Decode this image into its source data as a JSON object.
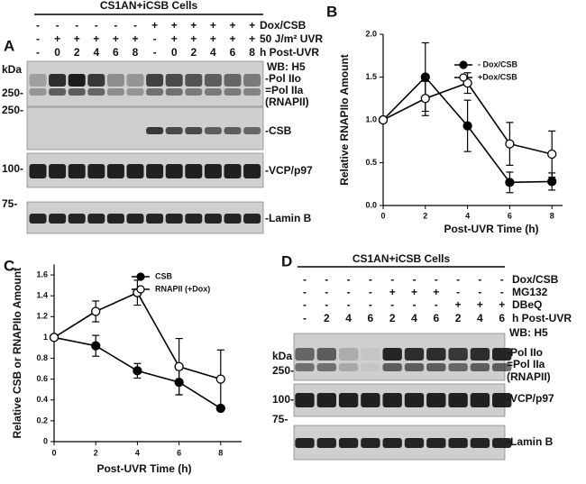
{
  "panel_a": {
    "letter": "A",
    "title": "CS1AN+iCSB Cells",
    "lane_rows": [
      {
        "cells": [
          "-",
          "-",
          "-",
          "-",
          "-",
          "-",
          "+",
          "+",
          "+",
          "+",
          "+",
          "+"
        ],
        "label": "Dox/CSB"
      },
      {
        "cells": [
          "-",
          "+",
          "+",
          "+",
          "+",
          "+",
          "-",
          "+",
          "+",
          "+",
          "+",
          "+"
        ],
        "label": "50 J/m² UVR"
      },
      {
        "cells": [
          "-",
          "0",
          "2",
          "4",
          "6",
          "8",
          "-",
          "0",
          "2",
          "4",
          "6",
          "8"
        ],
        "label": "h Post-UVR"
      }
    ],
    "markers": {
      "kda": "kDa",
      "h5_250": "250-",
      "csb_250": "250-",
      "vcp_100": "100-",
      "lamin_75": "75-"
    },
    "blot_labels": {
      "wb": "WB: H5",
      "pol_iio": "-Pol IIo",
      "pol_iia": "=Pol IIa",
      "rnapii": "(RNAPII)",
      "csb": "-CSB",
      "vcp": "-VCP/p97",
      "lamin": "-Lamin B"
    }
  },
  "panel_d": {
    "letter": "D",
    "title": "CS1AN+iCSB Cells",
    "lane_rows": [
      {
        "cells": [
          "-",
          "-",
          "-",
          "-",
          "-",
          "-",
          "-",
          "-",
          "-",
          "-"
        ],
        "label": "Dox/CSB"
      },
      {
        "cells": [
          "-",
          "-",
          "-",
          "-",
          "+",
          "+",
          "+",
          "-",
          "-",
          "-"
        ],
        "label": "MG132"
      },
      {
        "cells": [
          "-",
          "-",
          "-",
          "-",
          "-",
          "-",
          "-",
          "+",
          "+",
          "+"
        ],
        "label": "DBeQ"
      },
      {
        "cells": [
          "-",
          "2",
          "4",
          "6",
          "2",
          "4",
          "6",
          "2",
          "4",
          "6"
        ],
        "label": "h Post-UVR"
      }
    ],
    "markers": {
      "kda": "kDa",
      "h5_250": "250-",
      "vcp_100": "100-",
      "lamin_75": "75-"
    },
    "blot_labels": {
      "wb": "WB: H5",
      "pol_iio": "-Pol IIo",
      "pol_iia": "=Pol IIa",
      "rnapii": "(RNAPII)",
      "vcp": "-VCP/p97",
      "lamin": "-Lamin B"
    }
  },
  "chart_data": [
    {
      "type": "line",
      "panel": "B",
      "ylabel": "Relative RNAPIIo Amount",
      "xlabel": "Post-UVR   Time (h)",
      "x": [
        0,
        2,
        4,
        6,
        8
      ],
      "xlim": [
        0,
        8.5
      ],
      "xticks": [
        0,
        2,
        4,
        6,
        8
      ],
      "ylim": [
        0,
        2
      ],
      "yticks": [
        {
          "value": 0,
          "label": "0.0"
        },
        0.5,
        {
          "value": 1,
          "label": "1.0"
        },
        1.5,
        {
          "value": 2,
          "label": "2.0"
        }
      ],
      "legend": "upper right",
      "series": [
        {
          "name": "- Dox/CSB",
          "color": "#000000",
          "values": [
            1.0,
            1.5,
            0.93,
            0.27,
            0.28
          ],
          "errors": [
            0,
            0.4,
            0.3,
            0.12,
            0.1
          ]
        },
        {
          "name": "+Dox/CSB",
          "color": "#ffffff",
          "values": [
            1.0,
            1.25,
            1.43,
            0.72,
            0.6
          ],
          "errors": [
            0,
            0.2,
            0.12,
            0.25,
            0.27
          ]
        }
      ]
    },
    {
      "type": "line",
      "panel": "C",
      "ylabel": "Relative CSB or RNAPIIo Amount",
      "xlabel": "Post-UVR   Time (h)",
      "x": [
        0,
        2,
        4,
        6,
        8
      ],
      "xlim": [
        0,
        9
      ],
      "xticks": [
        0,
        2,
        4,
        6,
        8
      ],
      "ylim": [
        0,
        1.7
      ],
      "yticks": [
        0,
        0.2,
        0.4,
        0.6,
        0.8,
        1,
        1.2,
        1.4,
        1.6
      ],
      "legend": "upper right",
      "series": [
        {
          "name": "CSB",
          "color": "#000000",
          "values": [
            1.0,
            0.92,
            0.68,
            0.57,
            0.32
          ],
          "errors": [
            0,
            0.1,
            0.07,
            0.12,
            0
          ]
        },
        {
          "name": "RNAPII (+Dox)",
          "color": "#ffffff",
          "values": [
            1.0,
            1.25,
            1.43,
            0.72,
            0.6
          ],
          "errors": [
            0,
            0.1,
            0.12,
            0.27,
            0.28
          ]
        }
      ]
    }
  ]
}
